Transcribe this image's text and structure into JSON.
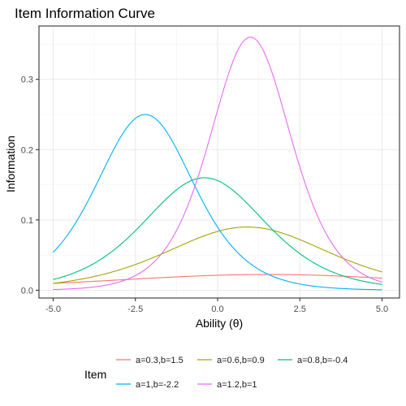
{
  "chart_data": {
    "type": "line",
    "title": "Item Information Curve",
    "xlabel": "Ability (θ)",
    "ylabel": "Information",
    "xlim": [
      -5,
      5
    ],
    "ylim": [
      0,
      0.36
    ],
    "x_ticks": [
      "-5.0",
      "-2.5",
      "0.0",
      "2.5",
      "5.0"
    ],
    "y_ticks": [
      "0.0",
      "0.1",
      "0.2",
      "0.3"
    ],
    "grid": true,
    "legend": {
      "title": "Item",
      "placement": "bottom"
    },
    "series": [
      {
        "name": "a=0.3,b=1.5",
        "a": 0.3,
        "b": 1.5,
        "color": "#F8766D",
        "x": [
          -5,
          -2.5,
          0,
          1.5,
          2.5,
          5
        ],
        "y": [
          0.016,
          0.019,
          0.022,
          0.0225,
          0.022,
          0.019
        ]
      },
      {
        "name": "a=0.6,b=0.9",
        "a": 0.6,
        "b": 0.9,
        "color": "#A3A500",
        "x": [
          -5,
          -2.5,
          0,
          0.9,
          2.5,
          5
        ],
        "y": [
          0.013,
          0.039,
          0.08,
          0.09,
          0.073,
          0.026
        ]
      },
      {
        "name": "a=0.8,b=-0.4",
        "a": 0.8,
        "b": -0.4,
        "color": "#00BF7D",
        "x": [
          -5,
          -2.5,
          -0.4,
          0,
          2.5,
          5
        ],
        "y": [
          0.015,
          0.097,
          0.16,
          0.157,
          0.055,
          0.01
        ]
      },
      {
        "name": "a=1,b=-2.2",
        "a": 1.0,
        "b": -2.2,
        "color": "#00B0F6",
        "x": [
          -5,
          -2.2,
          0,
          2.5,
          5
        ],
        "y": [
          0.053,
          0.25,
          0.09,
          0.009,
          0.0007
        ]
      },
      {
        "name": "a=1.2,b=1",
        "a": 1.2,
        "b": 1.0,
        "color": "#E76BF3",
        "x": [
          -5,
          -2.5,
          0,
          1,
          2.5,
          5
        ],
        "y": [
          0.0011,
          0.021,
          0.18,
          0.36,
          0.126,
          0.012
        ]
      }
    ]
  }
}
